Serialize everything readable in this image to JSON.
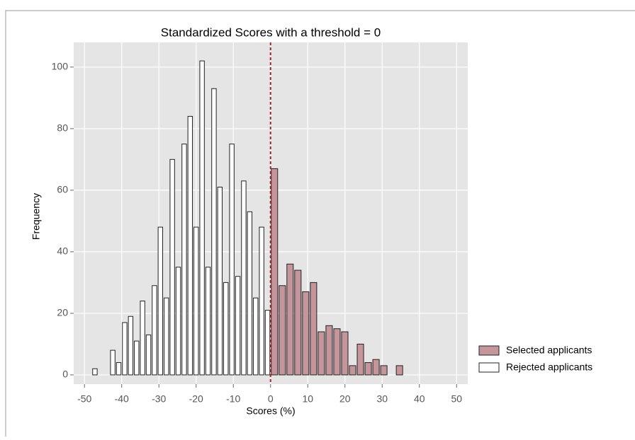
{
  "chart_data": {
    "type": "histogram",
    "title": "Standardized Scores with a threshold = 0",
    "xlabel": "Scores (%)",
    "ylabel": "Frequency",
    "threshold": 0,
    "series": [
      {
        "name": "Selected applicants",
        "color": "#c4959b",
        "bins": [
          0,
          2.1,
          4.2,
          6.3,
          8.4,
          10.5,
          12.6,
          14.7,
          16.8,
          18.9,
          21,
          23.1,
          25.2,
          27.3,
          29.4,
          31.5,
          33.6,
          35.7
        ],
        "values": [
          67,
          29,
          36,
          34,
          27,
          30,
          14,
          16,
          15,
          14,
          3,
          10,
          4,
          5,
          3,
          0,
          3
        ]
      },
      {
        "name": "Rejected applicants",
        "color": "#ffffff",
        "bins": [
          -48,
          -46.4,
          -44.8,
          -43.2,
          -41.6,
          -40,
          -38.4,
          -36.8,
          -35.2,
          -33.6,
          -32,
          -30.4,
          -28.8,
          -27.2,
          -25.6,
          -24,
          -22.4,
          -20.8,
          -19.2,
          -17.6,
          -16,
          -14.4,
          -12.8,
          -11.2,
          -9.6,
          -8,
          -6.4,
          -4.8,
          -3.2,
          -1.6,
          0
        ],
        "values": [
          2,
          0,
          0,
          8,
          4,
          17,
          19,
          11,
          24,
          13,
          29,
          48,
          25,
          70,
          35,
          75,
          84,
          48,
          102,
          35,
          93,
          61,
          30,
          75,
          32,
          63,
          53,
          25,
          48,
          21
        ]
      }
    ],
    "xlim": [
      -52.9,
      53
    ],
    "ylim": [
      -3,
      108
    ],
    "xticks": [
      -50,
      -40,
      -30,
      -20,
      -10,
      0,
      10,
      20,
      30,
      40,
      50
    ],
    "yticks": [
      0,
      20,
      40,
      60,
      80,
      100
    ],
    "grid": true,
    "legend": "right"
  }
}
